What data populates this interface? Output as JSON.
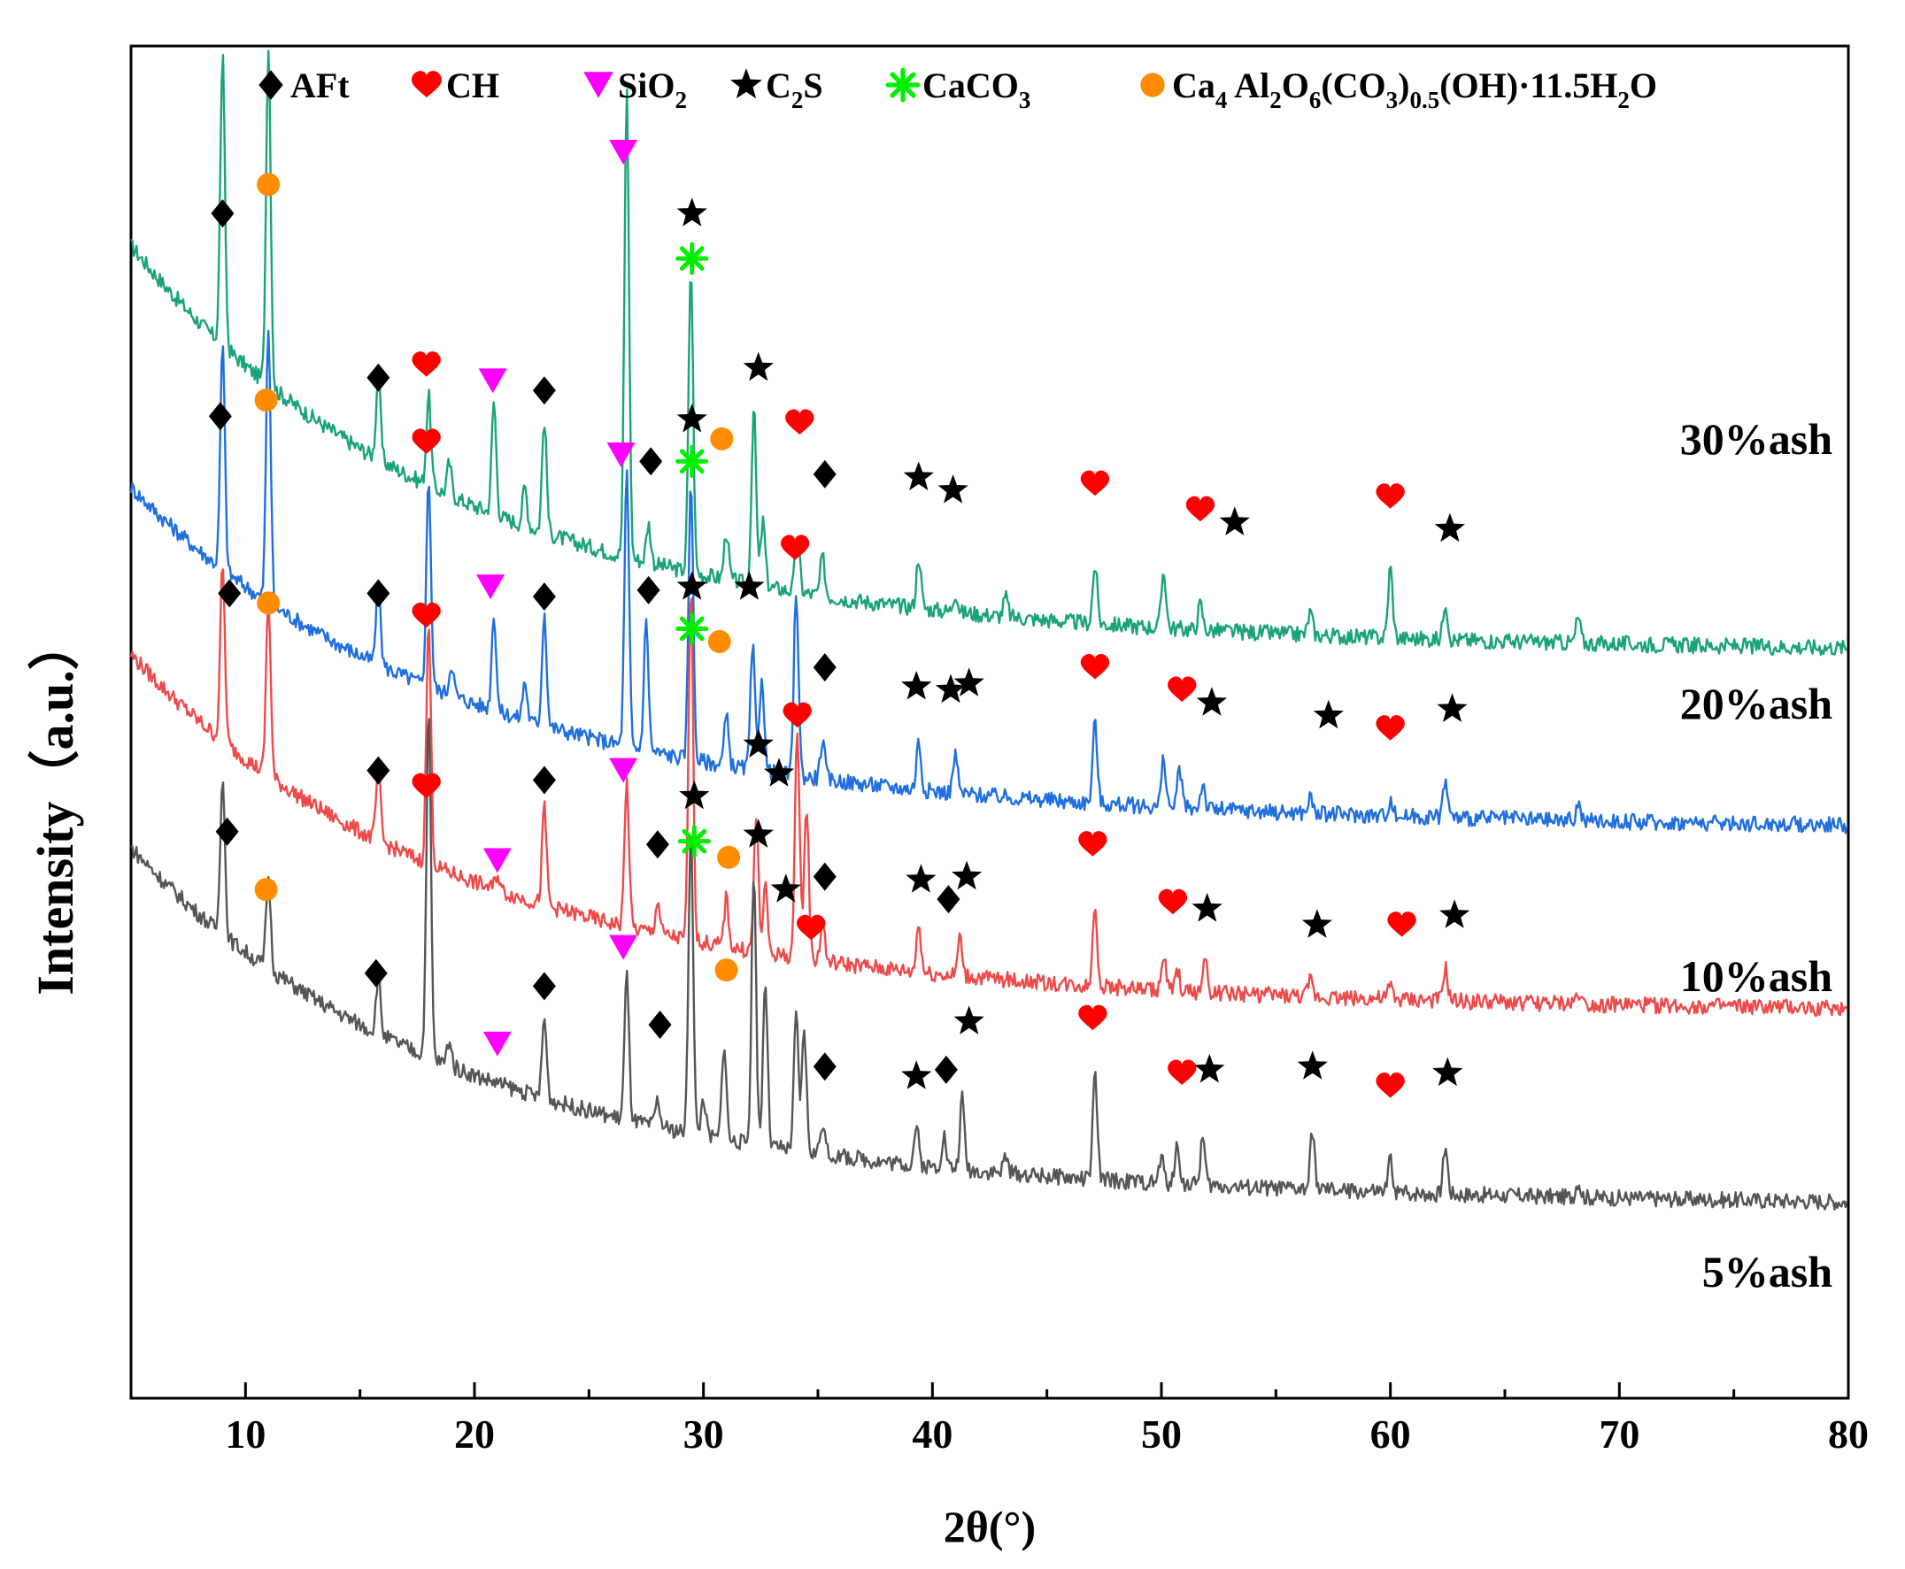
{
  "chart_data": {
    "type": "line",
    "title": "",
    "xlabel": "2θ(°)",
    "ylabel": "Intensity（a.u.）",
    "xlim": [
      5,
      80
    ],
    "x_ticks": [
      10,
      20,
      30,
      40,
      50,
      60,
      70,
      80
    ],
    "grid": false,
    "legend": {
      "placement": "top",
      "entries": [
        {
          "key": "AFt",
          "symbol": "diamond",
          "color": "#000000",
          "text": "AFt"
        },
        {
          "key": "CH",
          "symbol": "heart",
          "color": "#ff0000",
          "text": "CH"
        },
        {
          "key": "SiO2",
          "symbol": "triangle-down",
          "color": "#ff00ff",
          "text_main": "SiO",
          "text_sub": "2"
        },
        {
          "key": "C2S",
          "symbol": "star",
          "color": "#000000",
          "text_parts": [
            "C",
            "2",
            "S"
          ]
        },
        {
          "key": "CaCO3",
          "symbol": "asterisk",
          "color": "#00ee00",
          "text_main": "CaCO",
          "text_sub": "3"
        },
        {
          "key": "Hc",
          "symbol": "circle",
          "color": "#ff8c00",
          "text_parts": [
            "Ca",
            "4",
            " Al",
            "2",
            "O",
            "6",
            "(CO",
            "3",
            ")",
            "0.5",
            "(OH)·11.5H",
            "2",
            "O"
          ]
        }
      ]
    },
    "series": [
      {
        "name": "30%ash",
        "color": "#1aa37a",
        "base_offset": 1.0,
        "start": 1.1,
        "peaks": [
          [
            9.0,
            0.9
          ],
          [
            11.0,
            1.05
          ],
          [
            15.8,
            0.25
          ],
          [
            18.0,
            0.28
          ],
          [
            18.9,
            0.1
          ],
          [
            20.85,
            0.35
          ],
          [
            22.2,
            0.12
          ],
          [
            23.05,
            0.35
          ],
          [
            26.65,
            1.45
          ],
          [
            27.6,
            0.12
          ],
          [
            29.45,
            0.95
          ],
          [
            31.0,
            0.15
          ],
          [
            32.2,
            0.55
          ],
          [
            32.6,
            0.2
          ],
          [
            34.1,
            0.18
          ],
          [
            35.2,
            0.12
          ],
          [
            39.4,
            0.16
          ],
          [
            41.0,
            0.06
          ],
          [
            43.2,
            0.06
          ],
          [
            47.1,
            0.18
          ],
          [
            50.1,
            0.18
          ],
          [
            51.7,
            0.08
          ],
          [
            56.5,
            0.07
          ],
          [
            60.0,
            0.22
          ],
          [
            62.4,
            0.12
          ],
          [
            68.2,
            0.08
          ]
        ],
        "markers": [
          {
            "type": "diamond",
            "x": 9.0,
            "y": 2.38
          },
          {
            "type": "circle",
            "x": 11.0,
            "y": 2.47
          },
          {
            "type": "diamond",
            "x": 15.8,
            "y": 1.87
          },
          {
            "type": "heart",
            "x": 17.9,
            "y": 1.91
          },
          {
            "type": "triangle",
            "x": 20.8,
            "y": 1.86
          },
          {
            "type": "diamond",
            "x": 23.05,
            "y": 1.83
          },
          {
            "type": "triangle",
            "x": 26.5,
            "y": 2.57
          },
          {
            "type": "diamond",
            "x": 27.7,
            "y": 1.61
          },
          {
            "type": "star",
            "x": 29.5,
            "y": 2.38
          },
          {
            "type": "asterisk",
            "x": 29.5,
            "y": 2.24
          },
          {
            "type": "circle",
            "x": 30.8,
            "y": 1.68
          },
          {
            "type": "star",
            "x": 32.4,
            "y": 1.9
          },
          {
            "type": "heart",
            "x": 34.2,
            "y": 1.73
          },
          {
            "type": "diamond",
            "x": 35.3,
            "y": 1.57
          },
          {
            "type": "star",
            "x": 39.4,
            "y": 1.56
          },
          {
            "type": "star",
            "x": 40.9,
            "y": 1.52
          },
          {
            "type": "heart",
            "x": 47.1,
            "y": 1.54
          },
          {
            "type": "heart",
            "x": 51.7,
            "y": 1.46
          },
          {
            "type": "star",
            "x": 53.2,
            "y": 1.42
          },
          {
            "type": "heart",
            "x": 60.0,
            "y": 1.5
          },
          {
            "type": "star",
            "x": 62.6,
            "y": 1.4
          }
        ]
      },
      {
        "name": "20%ash",
        "color": "#1f6fe0",
        "base_offset": 0.45,
        "start": 0.9,
        "peaks": [
          [
            9.0,
            0.7
          ],
          [
            11.0,
            0.85
          ],
          [
            15.8,
            0.25
          ],
          [
            18.0,
            0.65
          ],
          [
            19.0,
            0.1
          ],
          [
            20.85,
            0.3
          ],
          [
            22.2,
            0.12
          ],
          [
            23.05,
            0.35
          ],
          [
            26.65,
            0.85
          ],
          [
            27.5,
            0.4
          ],
          [
            29.45,
            0.88
          ],
          [
            31.0,
            0.15
          ],
          [
            32.15,
            0.38
          ],
          [
            32.55,
            0.3
          ],
          [
            34.05,
            0.58
          ],
          [
            35.2,
            0.12
          ],
          [
            39.4,
            0.15
          ],
          [
            41.0,
            0.12
          ],
          [
            47.1,
            0.25
          ],
          [
            50.1,
            0.15
          ],
          [
            50.8,
            0.12
          ],
          [
            51.8,
            0.08
          ],
          [
            56.5,
            0.05
          ],
          [
            60.0,
            0.05
          ],
          [
            62.4,
            0.12
          ],
          [
            68.2,
            0.05
          ]
        ],
        "markers": [
          {
            "type": "diamond",
            "x": 8.9,
            "y": 1.75
          },
          {
            "type": "circle",
            "x": 10.9,
            "y": 1.8
          },
          {
            "type": "diamond",
            "x": 15.8,
            "y": 1.2
          },
          {
            "type": "heart",
            "x": 17.9,
            "y": 1.67
          },
          {
            "type": "triangle",
            "x": 20.7,
            "y": 1.22
          },
          {
            "type": "diamond",
            "x": 23.05,
            "y": 1.19
          },
          {
            "type": "triangle",
            "x": 26.4,
            "y": 1.63
          },
          {
            "type": "diamond",
            "x": 27.6,
            "y": 1.21
          },
          {
            "type": "star",
            "x": 29.5,
            "y": 1.74
          },
          {
            "type": "asterisk",
            "x": 29.5,
            "y": 1.61
          },
          {
            "type": "circle",
            "x": 30.7,
            "y": 1.05
          },
          {
            "type": "star",
            "x": 32.0,
            "y": 1.22
          },
          {
            "type": "heart",
            "x": 34.0,
            "y": 1.34
          },
          {
            "type": "diamond",
            "x": 35.3,
            "y": 0.97
          },
          {
            "type": "star",
            "x": 39.3,
            "y": 0.91
          },
          {
            "type": "star",
            "x": 40.8,
            "y": 0.9
          },
          {
            "type": "star",
            "x": 41.6,
            "y": 0.92
          },
          {
            "type": "heart",
            "x": 47.1,
            "y": 0.97
          },
          {
            "type": "heart",
            "x": 50.9,
            "y": 0.9
          },
          {
            "type": "star",
            "x": 52.2,
            "y": 0.86
          },
          {
            "type": "star",
            "x": 57.3,
            "y": 0.82
          },
          {
            "type": "heart",
            "x": 60.0,
            "y": 0.78
          },
          {
            "type": "star",
            "x": 62.7,
            "y": 0.84
          }
        ]
      },
      {
        "name": "10%ash",
        "color": "#ef4a4a",
        "base_offset": -0.12,
        "start": 0.95,
        "peaks": [
          [
            9.0,
            0.55
          ],
          [
            11.0,
            0.55
          ],
          [
            15.8,
            0.22
          ],
          [
            18.0,
            0.75
          ],
          [
            21.0,
            0.05
          ],
          [
            23.05,
            0.3
          ],
          [
            26.65,
            0.45
          ],
          [
            28.0,
            0.1
          ],
          [
            29.45,
            1.1
          ],
          [
            31.0,
            0.15
          ],
          [
            32.3,
            0.42
          ],
          [
            32.7,
            0.2
          ],
          [
            34.1,
            0.72
          ],
          [
            34.5,
            0.48
          ],
          [
            35.2,
            0.12
          ],
          [
            39.4,
            0.15
          ],
          [
            41.2,
            0.12
          ],
          [
            47.1,
            0.25
          ],
          [
            50.1,
            0.1
          ],
          [
            50.7,
            0.06
          ],
          [
            51.9,
            0.1
          ],
          [
            56.5,
            0.05
          ],
          [
            60.0,
            0.04
          ],
          [
            62.4,
            0.1
          ],
          [
            68.2,
            0.04
          ]
        ],
        "markers": [
          {
            "type": "diamond",
            "x": 9.3,
            "y": 1.2
          },
          {
            "type": "circle",
            "x": 11.0,
            "y": 1.17
          },
          {
            "type": "diamond",
            "x": 15.8,
            "y": 0.65
          },
          {
            "type": "heart",
            "x": 17.9,
            "y": 1.13
          },
          {
            "type": "triangle",
            "x": 21.0,
            "y": 0.37
          },
          {
            "type": "diamond",
            "x": 23.05,
            "y": 0.62
          },
          {
            "type": "triangle",
            "x": 26.5,
            "y": 0.65
          },
          {
            "type": "diamond",
            "x": 28.0,
            "y": 0.42
          },
          {
            "type": "star",
            "x": 29.5,
            "y": 1.22
          },
          {
            "type": "asterisk",
            "x": 29.5,
            "y": 1.09
          },
          {
            "type": "circle",
            "x": 31.1,
            "y": 0.38
          },
          {
            "type": "star",
            "x": 32.4,
            "y": 0.73
          },
          {
            "type": "star",
            "x": 33.3,
            "y": 0.64
          },
          {
            "type": "heart",
            "x": 34.1,
            "y": 0.82
          },
          {
            "type": "diamond",
            "x": 35.3,
            "y": 0.32
          },
          {
            "type": "star",
            "x": 39.5,
            "y": 0.31
          },
          {
            "type": "diamond",
            "x": 40.7,
            "y": 0.25
          },
          {
            "type": "star",
            "x": 41.5,
            "y": 0.32
          },
          {
            "type": "heart",
            "x": 47.0,
            "y": 0.42
          },
          {
            "type": "heart",
            "x": 50.5,
            "y": 0.24
          },
          {
            "type": "star",
            "x": 52.0,
            "y": 0.22
          },
          {
            "type": "star",
            "x": 56.8,
            "y": 0.17
          },
          {
            "type": "heart",
            "x": 60.5,
            "y": 0.17
          },
          {
            "type": "star",
            "x": 62.8,
            "y": 0.2
          }
        ]
      },
      {
        "name": "5%ash",
        "color": "#555555",
        "base_offset": -0.72,
        "start": 0.95,
        "peaks": [
          [
            9.0,
            0.5
          ],
          [
            11.0,
            0.28
          ],
          [
            15.8,
            0.18
          ],
          [
            18.0,
            1.07
          ],
          [
            18.9,
            0.08
          ],
          [
            23.05,
            0.25
          ],
          [
            26.65,
            0.45
          ],
          [
            28.0,
            0.08
          ],
          [
            29.45,
            0.97
          ],
          [
            30.0,
            0.12
          ],
          [
            30.9,
            0.3
          ],
          [
            32.2,
            0.85
          ],
          [
            32.7,
            0.52
          ],
          [
            34.05,
            0.42
          ],
          [
            34.4,
            0.38
          ],
          [
            35.2,
            0.1
          ],
          [
            39.3,
            0.12
          ],
          [
            40.5,
            0.1
          ],
          [
            41.3,
            0.22
          ],
          [
            43.2,
            0.05
          ],
          [
            47.1,
            0.32
          ],
          [
            50.0,
            0.08
          ],
          [
            50.7,
            0.12
          ],
          [
            51.8,
            0.15
          ],
          [
            56.6,
            0.18
          ],
          [
            60.0,
            0.1
          ],
          [
            62.4,
            0.15
          ],
          [
            68.2,
            0.05
          ]
        ],
        "markers": [
          {
            "type": "diamond",
            "x": 9.2,
            "y": 0.46
          },
          {
            "type": "circle",
            "x": 10.9,
            "y": 0.28
          },
          {
            "type": "diamond",
            "x": 15.7,
            "y": 0.02
          },
          {
            "type": "heart",
            "x": 17.9,
            "y": 0.6
          },
          {
            "type": "triangle",
            "x": 21.0,
            "y": -0.2
          },
          {
            "type": "diamond",
            "x": 23.05,
            "y": -0.02
          },
          {
            "type": "triangle",
            "x": 26.5,
            "y": 0.1
          },
          {
            "type": "diamond",
            "x": 28.1,
            "y": -0.14
          },
          {
            "type": "star",
            "x": 29.6,
            "y": 0.57
          },
          {
            "type": "asterisk",
            "x": 29.6,
            "y": 0.43
          },
          {
            "type": "circle",
            "x": 31.0,
            "y": 0.03
          },
          {
            "type": "star",
            "x": 32.4,
            "y": 0.45
          },
          {
            "type": "star",
            "x": 33.6,
            "y": 0.28
          },
          {
            "type": "heart",
            "x": 34.7,
            "y": 0.16
          },
          {
            "type": "diamond",
            "x": 35.3,
            "y": -0.27
          },
          {
            "type": "star",
            "x": 39.3,
            "y": -0.3
          },
          {
            "type": "diamond",
            "x": 40.6,
            "y": -0.28
          },
          {
            "type": "star",
            "x": 41.6,
            "y": -0.13
          },
          {
            "type": "heart",
            "x": 47.0,
            "y": -0.12
          },
          {
            "type": "heart",
            "x": 50.9,
            "y": -0.29
          },
          {
            "type": "star",
            "x": 52.1,
            "y": -0.28
          },
          {
            "type": "star",
            "x": 56.6,
            "y": -0.27
          },
          {
            "type": "heart",
            "x": 60.0,
            "y": -0.33
          },
          {
            "type": "star",
            "x": 62.5,
            "y": -0.29
          }
        ]
      }
    ]
  }
}
